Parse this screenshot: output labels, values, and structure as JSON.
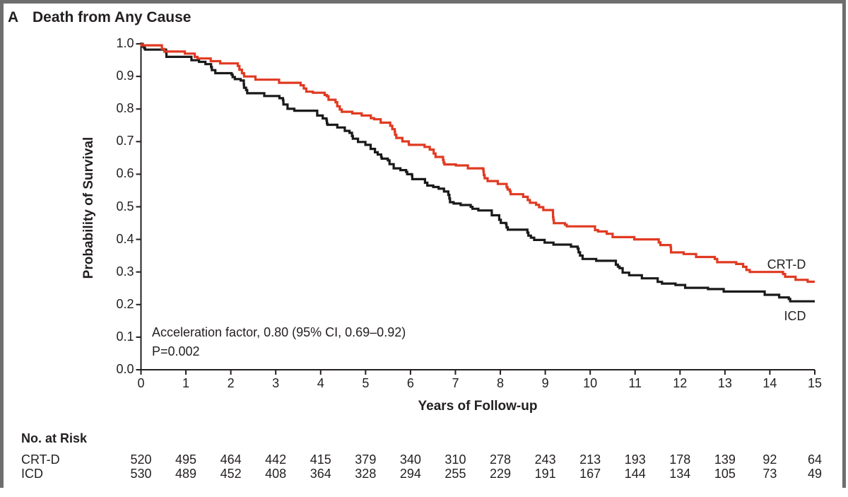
{
  "figure": {
    "panel_label": "A",
    "title": "Death from Any Cause"
  },
  "annotation": {
    "line1": "Acceleration factor, 0.80 (95% CI, 0.69–0.92)",
    "line2": "P=0.002"
  },
  "chart_data": {
    "type": "line",
    "subtype": "kaplan-meier-step",
    "title": "Death from Any Cause",
    "xlabel": "Years of Follow-up",
    "ylabel": "Probability of Survival",
    "xlim": [
      0,
      15
    ],
    "ylim": [
      0.0,
      1.0
    ],
    "x_ticks": [
      0,
      1,
      2,
      3,
      4,
      5,
      6,
      7,
      8,
      9,
      10,
      11,
      12,
      13,
      14,
      15
    ],
    "y_ticks": [
      1.0,
      0.9,
      0.8,
      0.7,
      0.6,
      0.5,
      0.4,
      0.3,
      0.2,
      0.1,
      0.0
    ],
    "grid": false,
    "legend_position": "end-of-curve labels",
    "x": [
      0,
      1,
      2,
      3,
      4,
      5,
      6,
      7,
      8,
      9,
      10,
      11,
      12,
      13,
      14,
      15
    ],
    "series": [
      {
        "name": "CRT-D",
        "color": "#e03a22",
        "values": [
          1.0,
          0.97,
          0.94,
          0.89,
          0.85,
          0.78,
          0.69,
          0.63,
          0.57,
          0.49,
          0.44,
          0.4,
          0.36,
          0.33,
          0.3,
          0.27
        ]
      },
      {
        "name": "ICD",
        "color": "#1a1a1a",
        "values": [
          1.0,
          0.96,
          0.91,
          0.84,
          0.78,
          0.69,
          0.6,
          0.51,
          0.46,
          0.39,
          0.34,
          0.29,
          0.26,
          0.24,
          0.23,
          0.21
        ]
      }
    ]
  },
  "risk_table": {
    "title": "No. at Risk",
    "rows": [
      {
        "label": "CRT-D",
        "counts": [
          520,
          495,
          464,
          442,
          415,
          379,
          340,
          310,
          278,
          243,
          213,
          193,
          178,
          139,
          92,
          64
        ]
      },
      {
        "label": "ICD",
        "counts": [
          530,
          489,
          452,
          408,
          364,
          328,
          294,
          255,
          229,
          191,
          167,
          144,
          134,
          105,
          73,
          49
        ]
      }
    ]
  },
  "colors": {
    "crtd": "#e03a22",
    "icd": "#1a1a1a",
    "axis": "#231f20",
    "frame_border": "#6e6e6e"
  }
}
